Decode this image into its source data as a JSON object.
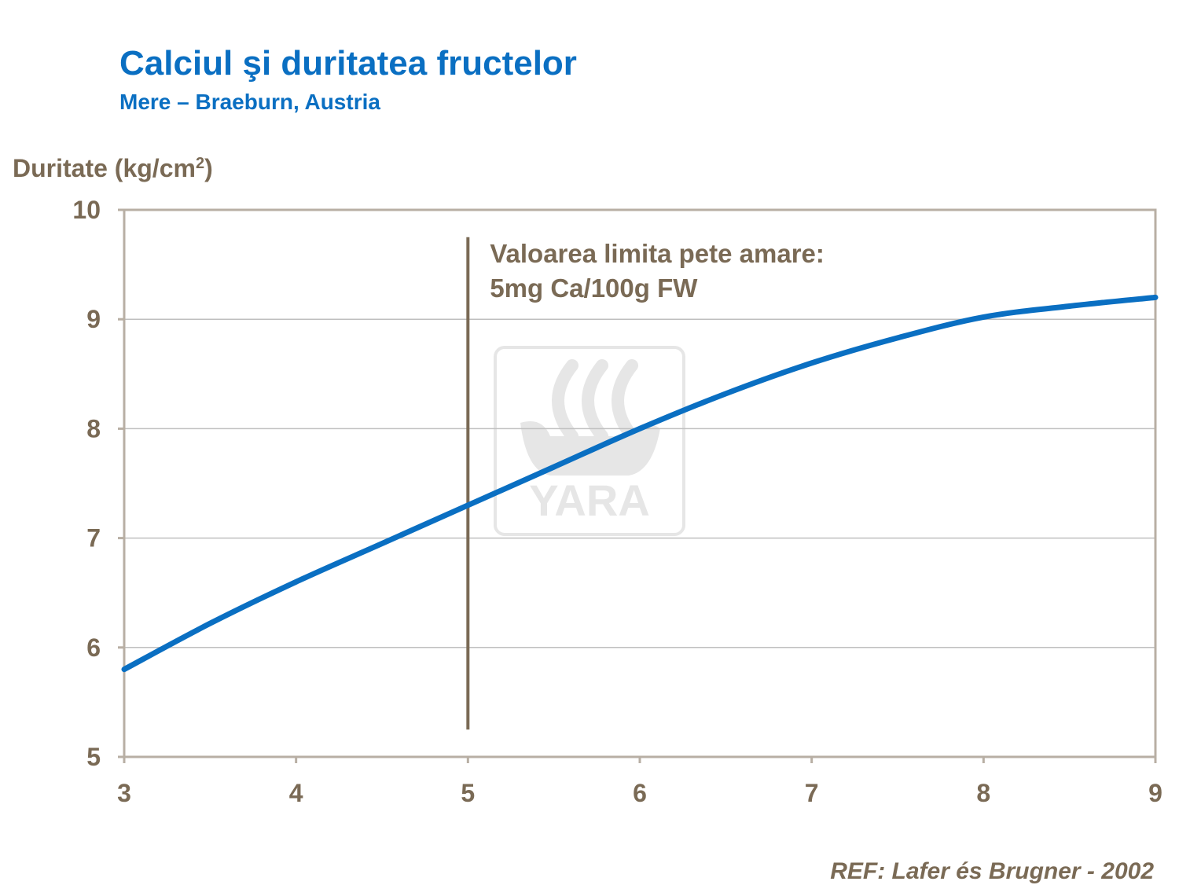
{
  "chart_data": {
    "type": "line",
    "title": "Calciul şi duritatea fructelor",
    "subtitle": "Mere – Braeburn,  Austria",
    "ylabel_main": "Duritate (kg/cm",
    "ylabel_sup": "2",
    "ylabel_close": ")",
    "xlim": [
      3,
      9
    ],
    "ylim": [
      5,
      10
    ],
    "x_ticks": [
      "3",
      "4",
      "5",
      "6",
      "7",
      "8",
      "9"
    ],
    "y_ticks": [
      "5",
      "6",
      "7",
      "8",
      "9",
      "10"
    ],
    "grid": true,
    "series": [
      {
        "x": [
          3,
          3.5,
          4,
          4.5,
          5,
          5.5,
          6,
          6.5,
          7,
          7.5,
          8,
          8.5,
          9
        ],
        "y": [
          5.8,
          6.22,
          6.6,
          6.95,
          7.3,
          7.65,
          8.0,
          8.32,
          8.6,
          8.83,
          9.02,
          9.12,
          9.2
        ],
        "color": "#0A6FC2"
      }
    ],
    "threshold": {
      "x": 5,
      "y_from": 5.25,
      "y_to": 9.75,
      "color": "#7A6A55",
      "label_line1": "Valoarea limita pete amare:",
      "label_line2": "5mg Ca/100g FW"
    },
    "watermark": {
      "text": "YARA"
    }
  },
  "reference": "REF: Lafer és Brugner - 2002",
  "colors": {
    "title": "#0A6FC2",
    "text": "#7A6A55",
    "axis": "#B8AFA4",
    "grid": "#BFBFBF"
  }
}
